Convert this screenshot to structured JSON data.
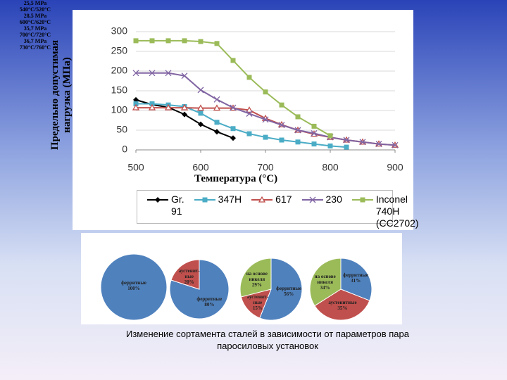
{
  "chart_data": [
    {
      "type": "line",
      "xlabel": "Температура (°C)",
      "ylabel": "Предельно допустимая нагрузка (МПа)",
      "x": [
        500,
        525,
        550,
        575,
        600,
        625,
        650,
        675,
        700,
        725,
        750,
        775,
        800,
        825,
        850,
        875,
        900
      ],
      "xlim": [
        500,
        900
      ],
      "xticks": [
        500,
        600,
        700,
        800,
        900
      ],
      "ylim": [
        0,
        300
      ],
      "yticks": [
        0,
        50,
        100,
        150,
        200,
        250,
        300
      ],
      "grid": true,
      "series": [
        {
          "name": "Gr. 91",
          "color": "#000000",
          "marker": "diamond",
          "values": [
            127,
            115,
            108,
            90,
            65,
            46,
            30,
            null,
            null,
            null,
            null,
            null,
            null,
            null,
            null,
            null,
            null
          ]
        },
        {
          "name": "347H",
          "color": "#4bacc6",
          "marker": "square",
          "values": [
            117,
            117,
            114,
            110,
            93,
            70,
            54,
            41,
            32,
            25,
            20,
            15,
            10,
            7,
            null,
            null,
            null
          ]
        },
        {
          "name": "617",
          "color": "#c0504d",
          "marker": "triangle",
          "values": [
            107,
            107,
            107,
            107,
            106,
            106,
            106,
            101,
            80,
            64,
            50,
            40,
            32,
            25,
            20,
            15,
            12
          ]
        },
        {
          "name": "230",
          "color": "#8064a2",
          "marker": "cross",
          "values": [
            195,
            195,
            195,
            188,
            152,
            128,
            107,
            92,
            77,
            63,
            50,
            42,
            32,
            25,
            20,
            15,
            12
          ]
        },
        {
          "name": "Inconel 740H (CC2702)",
          "color": "#9bbb59",
          "marker": "square",
          "values": [
            277,
            277,
            277,
            277,
            275,
            270,
            227,
            184,
            147,
            114,
            84,
            60,
            36,
            null,
            null,
            null,
            null
          ]
        }
      ]
    },
    {
      "type": "pie",
      "title": "25,5 MPa",
      "subtitle": "540°C/520°C",
      "categories": [
        "ферритные"
      ],
      "values": [
        100
      ],
      "value_labels": [
        "100%"
      ],
      "colors": [
        "#4f81bd"
      ]
    },
    {
      "type": "pie",
      "title": "28,5 MPa",
      "subtitle": "600°C/620°C",
      "categories": [
        "ферритные",
        "аустенит-ные"
      ],
      "values": [
        80,
        20
      ],
      "value_labels": [
        "80%",
        "20%"
      ],
      "colors": [
        "#4f81bd",
        "#c0504d"
      ]
    },
    {
      "type": "pie",
      "title": "35,7 MPa",
      "subtitle": "700°C/720°C",
      "categories": [
        "ферритные",
        "аустенит-ные",
        "на основе никеля"
      ],
      "values": [
        56,
        15,
        29
      ],
      "value_labels": [
        "56%",
        "15%",
        "29%"
      ],
      "colors": [
        "#4f81bd",
        "#c0504d",
        "#9bbb59"
      ]
    },
    {
      "type": "pie",
      "title": "36,7 MPa",
      "subtitle": "730°C/760°C",
      "categories": [
        "ферритные",
        "аустенитные",
        "на основе никеля"
      ],
      "values": [
        31,
        35,
        34
      ],
      "value_labels": [
        "31%",
        "35%",
        "34%"
      ],
      "colors": [
        "#4f81bd",
        "#c0504d",
        "#9bbb59"
      ]
    }
  ],
  "caption": "Изменение сортамента сталей в зависимости от параметров пара паросиловых установок"
}
